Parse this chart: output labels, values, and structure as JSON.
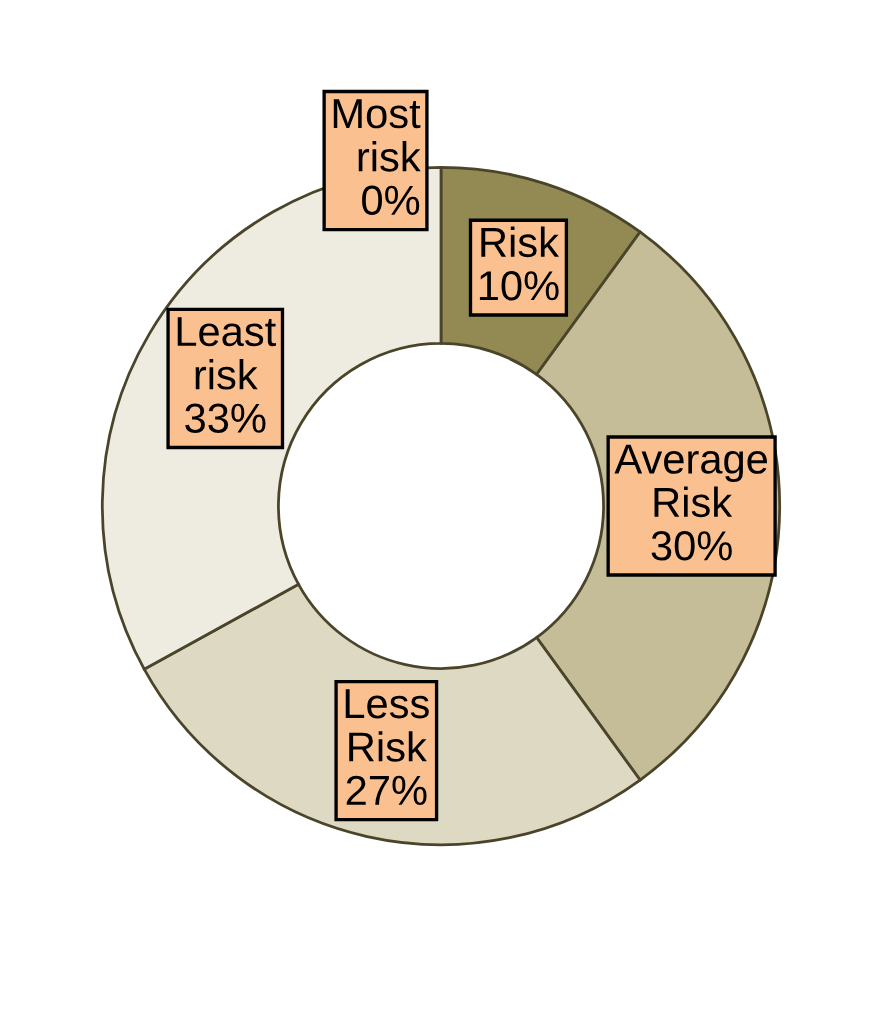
{
  "chart_data": {
    "type": "donut",
    "categories": [
      "Most risk",
      "Risk",
      "Average Risk",
      "Less Risk",
      "Least risk"
    ],
    "values": [
      0,
      10,
      30,
      27,
      33
    ],
    "colors": [
      "#eeece1",
      "#938953",
      "#c4bd97",
      "#ddd9c3",
      "#eeece1"
    ],
    "value_labels": [
      "0%",
      "10%",
      "30%",
      "27%",
      "33%"
    ],
    "legend": false
  }
}
